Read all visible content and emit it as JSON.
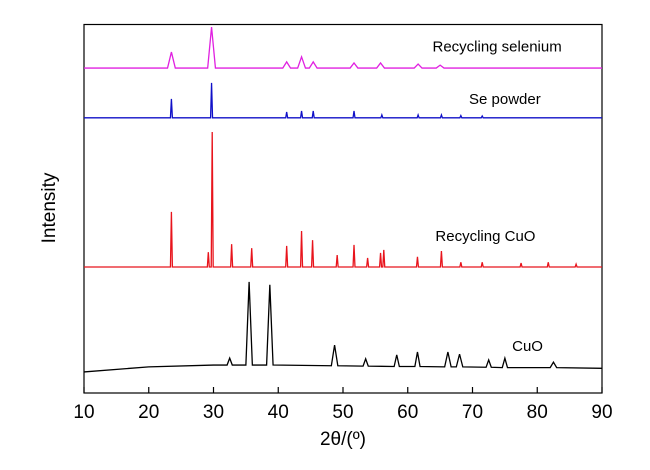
{
  "chart_data": {
    "type": "line",
    "xlabel": "2θ/(º)",
    "ylabel": "Intensity",
    "xlim": [
      10,
      90
    ],
    "xticks": [
      10,
      20,
      30,
      40,
      50,
      60,
      70,
      80,
      90
    ],
    "ylim": [
      0,
      101.5
    ],
    "series": [
      {
        "name": "CuO",
        "color": "#000000",
        "x": [
          10,
          20,
          30,
          32.1,
          32.5,
          32.9,
          35.0,
          35.5,
          36.0,
          38.2,
          38.7,
          39.2,
          48.2,
          48.7,
          49.2,
          53.1,
          53.5,
          53.9,
          57.9,
          58.3,
          58.7,
          61.1,
          61.5,
          61.9,
          65.7,
          66.2,
          66.7,
          67.5,
          68.0,
          68.5,
          72.1,
          72.5,
          72.9,
          74.6,
          75.0,
          75.4,
          82.0,
          82.5,
          83.0,
          90
        ],
        "values": [
          5.8,
          7.2,
          7.7,
          7.7,
          9.6,
          7.7,
          7.7,
          30.6,
          7.7,
          7.7,
          29.8,
          7.7,
          7.5,
          13.2,
          7.5,
          7.4,
          9.4,
          7.4,
          7.3,
          10.5,
          7.3,
          7.3,
          11.3,
          7.3,
          7.2,
          11.3,
          7.2,
          7.2,
          10.7,
          7.2,
          7.1,
          9.1,
          7.1,
          7.0,
          9.6,
          7.0,
          7.0,
          8.5,
          7.0,
          6.8
        ]
      },
      {
        "name": "Recycling CuO",
        "color": "#e8141c",
        "x": [
          10,
          23.35,
          23.5,
          23.65,
          29.05,
          29.2,
          29.35,
          29.65,
          29.8,
          29.95,
          32.65,
          32.8,
          32.95,
          35.75,
          35.9,
          36.05,
          41.15,
          41.3,
          41.45,
          43.45,
          43.6,
          43.75,
          45.15,
          45.3,
          45.45,
          48.95,
          49.1,
          49.25,
          51.55,
          51.7,
          51.85,
          53.65,
          53.8,
          53.95,
          55.65,
          55.8,
          55.95,
          56.15,
          56.3,
          56.45,
          61.35,
          61.5,
          61.65,
          65.05,
          65.2,
          65.35,
          68.05,
          68.2,
          68.35,
          71.35,
          71.5,
          71.65,
          77.35,
          77.5,
          77.65,
          81.55,
          81.7,
          81.85,
          85.85,
          86.0,
          86.15,
          90
        ],
        "values": [
          34.7,
          34.7,
          49.9,
          34.7,
          34.7,
          38.8,
          34.7,
          34.7,
          71.9,
          34.7,
          34.7,
          41.0,
          34.7,
          34.7,
          39.9,
          34.7,
          34.7,
          40.5,
          34.7,
          34.7,
          44.6,
          34.7,
          34.7,
          42.1,
          34.7,
          34.7,
          38.0,
          34.7,
          34.7,
          40.8,
          34.7,
          34.7,
          37.2,
          34.7,
          34.7,
          38.6,
          34.7,
          34.7,
          39.4,
          34.7,
          34.7,
          37.5,
          34.7,
          34.7,
          39.1,
          34.7,
          34.7,
          36.0,
          34.7,
          34.7,
          36.0,
          34.7,
          34.7,
          35.8,
          34.7,
          34.7,
          36.0,
          34.7,
          34.7,
          35.5,
          34.7,
          34.7
        ]
      },
      {
        "name": "Se powder",
        "color": "#1010c8",
        "x": [
          10,
          23.35,
          23.5,
          23.65,
          29.55,
          29.7,
          29.85,
          41.15,
          41.3,
          41.45,
          43.45,
          43.6,
          43.75,
          45.25,
          45.4,
          45.55,
          51.55,
          51.7,
          51.85,
          55.85,
          56.0,
          56.15,
          61.45,
          61.6,
          61.75,
          65.05,
          65.2,
          65.35,
          68.05,
          68.2,
          68.35,
          71.35,
          71.5,
          71.65,
          90
        ],
        "values": [
          75.8,
          75.8,
          81.0,
          75.8,
          75.8,
          85.4,
          75.8,
          75.8,
          77.4,
          75.8,
          75.8,
          77.7,
          75.8,
          75.8,
          77.7,
          75.8,
          75.8,
          77.7,
          75.8,
          75.8,
          76.6,
          75.8,
          75.8,
          76.6,
          75.8,
          75.8,
          76.6,
          75.8,
          75.8,
          76.4,
          75.8,
          75.8,
          76.3,
          75.8,
          75.8
        ]
      },
      {
        "name": "Recycling selenium",
        "color": "#e020e0",
        "x": [
          10,
          22.9,
          23.5,
          24.1,
          29.1,
          29.7,
          30.3,
          40.7,
          41.3,
          41.9,
          43.0,
          43.6,
          44.2,
          44.8,
          45.4,
          46.0,
          51.1,
          51.7,
          52.3,
          55.2,
          55.8,
          56.4,
          61.0,
          61.6,
          62.2,
          64.4,
          65.0,
          65.6,
          90
        ],
        "values": [
          89.5,
          89.5,
          93.9,
          89.5,
          89.5,
          100.8,
          89.5,
          89.5,
          91.2,
          89.5,
          89.5,
          92.6,
          89.5,
          89.5,
          91.2,
          89.5,
          89.5,
          90.9,
          89.5,
          89.5,
          90.9,
          89.5,
          89.5,
          90.6,
          89.5,
          89.5,
          90.3,
          89.5,
          89.5
        ]
      }
    ]
  }
}
